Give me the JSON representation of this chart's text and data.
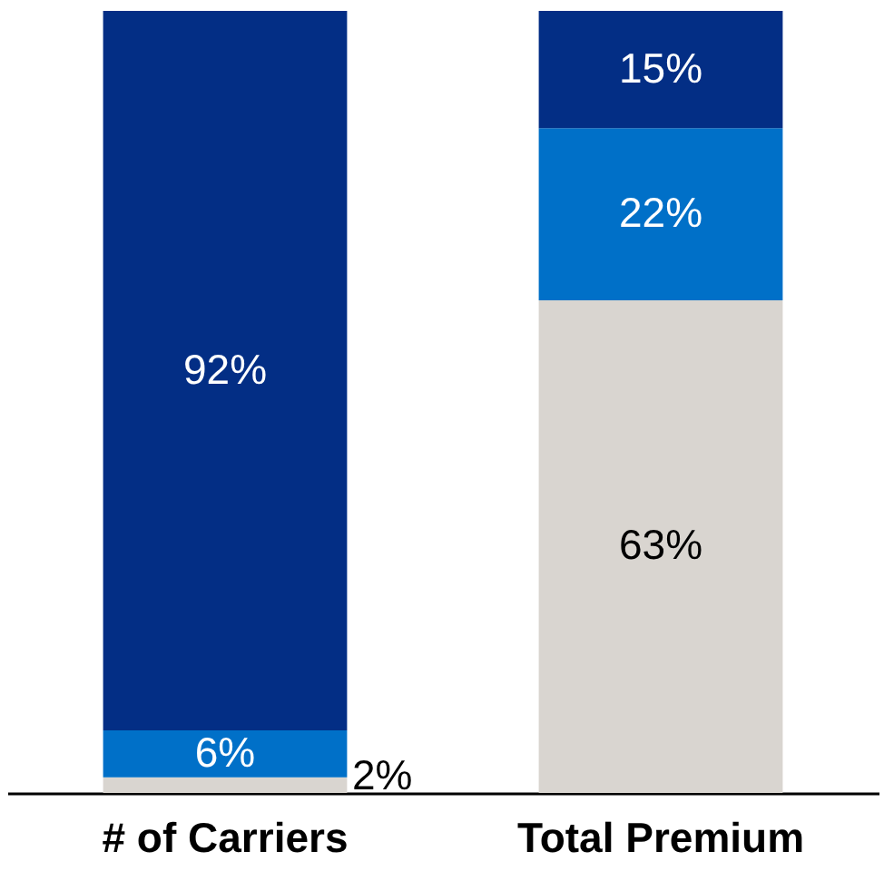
{
  "chart_data": {
    "type": "bar",
    "stacked": true,
    "categories": [
      "# of Carriers",
      "Total Premium"
    ],
    "series": [
      {
        "color": "#d9d5d0",
        "values": [
          2,
          63
        ],
        "value_labels": [
          "2%",
          "63%"
        ]
      },
      {
        "color": "#0070c8",
        "values": [
          6,
          22
        ],
        "value_labels": [
          "6%",
          "22%"
        ]
      },
      {
        "color": "#032e85",
        "values": [
          92,
          15
        ],
        "value_labels": [
          "92%",
          "15%"
        ]
      }
    ],
    "grid": false
  }
}
